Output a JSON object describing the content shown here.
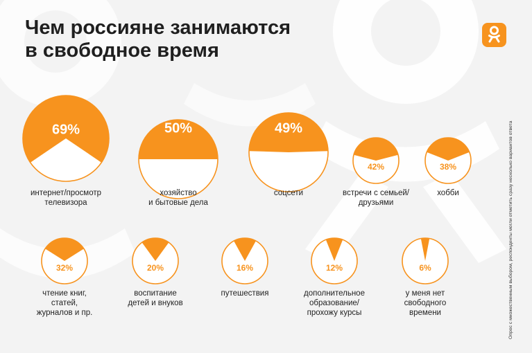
{
  "header": {
    "title_line1": "Чем россияне занимаются",
    "title_line2": "в свободное время"
  },
  "footnote": "Опрос с множественным выбором, респонденты могли отметить сразу несколько вариантов ответа",
  "colors": {
    "accent": "#f7931e",
    "text": "#1f1f1f",
    "background": "#f3f3f3",
    "decor": "#ffffff"
  },
  "logo_icon": "odnoklassniki-logo-icon",
  "chart_data": {
    "type": "pie",
    "title": "Чем россияне занимаются в свободное время",
    "unit": "%",
    "items": [
      {
        "label": "интернет/просмотр\nтелевизора",
        "value": 69,
        "value_label": "69%"
      },
      {
        "label": "хозяйство\nи бытовые дела",
        "value": 50,
        "value_label": "50%"
      },
      {
        "label": "соцсети",
        "value": 49,
        "value_label": "49%"
      },
      {
        "label": "встречи с семьей/\nдрузьями",
        "value": 42,
        "value_label": "42%"
      },
      {
        "label": "хобби",
        "value": 38,
        "value_label": "38%"
      },
      {
        "label": "чтение книг,\nстатей,\nжурналов и пр.",
        "value": 32,
        "value_label": "32%"
      },
      {
        "label": "воспитание\nдетей и внуков",
        "value": 20,
        "value_label": "20%"
      },
      {
        "label": "путешествия",
        "value": 16,
        "value_label": "16%"
      },
      {
        "label": "дополнительное\nобразование/\nпрохожу курсы",
        "value": 12,
        "value_label": "12%"
      },
      {
        "label": "у меня нет\nсвободного\nвремени",
        "value": 6,
        "value_label": "6%"
      }
    ]
  }
}
